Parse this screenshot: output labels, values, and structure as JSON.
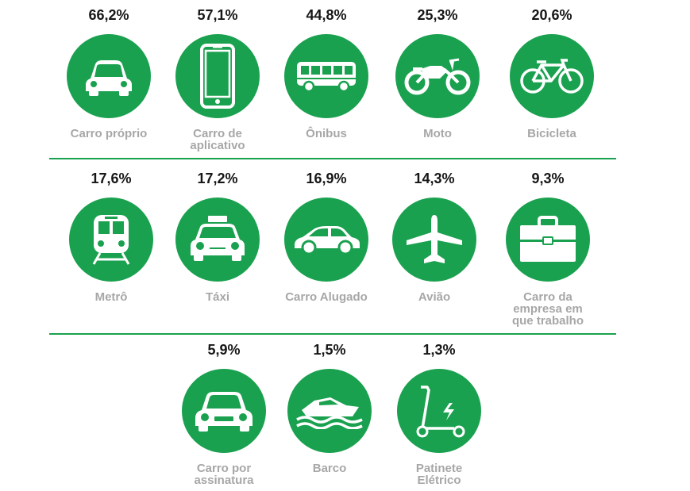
{
  "colors": {
    "accent": "#1aa14f",
    "percent_text": "#161616",
    "label_text": "#a7a7a7"
  },
  "rows": [
    [
      {
        "percent": "66,2%",
        "label_lines": [
          "Carro próprio"
        ],
        "icon": "car-icon"
      },
      {
        "percent": "57,1%",
        "label_lines": [
          "Carro de",
          "aplicativo"
        ],
        "icon": "smartphone-icon"
      },
      {
        "percent": "44,8%",
        "label_lines": [
          "Ônibus"
        ],
        "icon": "bus-icon"
      },
      {
        "percent": "25,3%",
        "label_lines": [
          "Moto"
        ],
        "icon": "motorcycle-icon"
      },
      {
        "percent": "20,6%",
        "label_lines": [
          "Bicicleta"
        ],
        "icon": "bicycle-icon"
      }
    ],
    [
      {
        "percent": "17,6%",
        "label_lines": [
          "Metrô"
        ],
        "icon": "train-icon"
      },
      {
        "percent": "17,2%",
        "label_lines": [
          "Táxi"
        ],
        "icon": "taxi-icon"
      },
      {
        "percent": "16,9%",
        "label_lines": [
          "Carro Alugado"
        ],
        "icon": "car-side-icon"
      },
      {
        "percent": "14,3%",
        "label_lines": [
          "Avião"
        ],
        "icon": "airplane-icon"
      },
      {
        "percent": "9,3%",
        "label_lines": [
          "Carro da",
          "empresa em",
          "que trabalho"
        ],
        "icon": "briefcase-icon"
      }
    ],
    [
      {
        "percent": "5,9%",
        "label_lines": [
          "Carro por",
          "assinatura"
        ],
        "icon": "car-front-icon"
      },
      {
        "percent": "1,5%",
        "label_lines": [
          "Barco"
        ],
        "icon": "boat-icon"
      },
      {
        "percent": "1,3%",
        "label_lines": [
          "Patinete",
          "Elétrico"
        ],
        "icon": "electric-scooter-icon"
      }
    ]
  ]
}
